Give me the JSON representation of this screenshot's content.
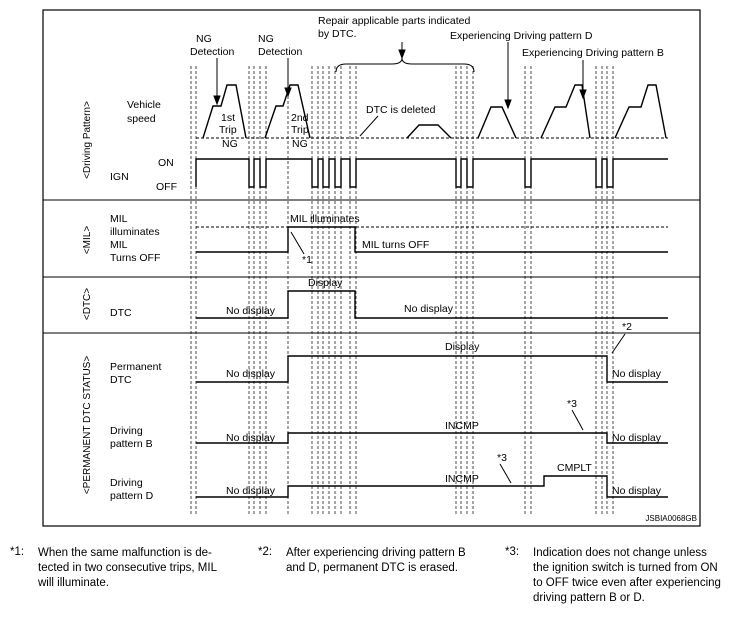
{
  "top_notes": {
    "ng_detection_1": [
      "NG",
      "Detection"
    ],
    "ng_detection_2": [
      "NG",
      "Detection"
    ],
    "repair": [
      "Repair applicable parts indicated",
      "by DTC."
    ],
    "pattern_d": "Experiencing Driving pattern D",
    "pattern_b": "Experiencing Driving pattern B"
  },
  "section_labels": {
    "driving_pattern": "<Driving Pattern>",
    "mil": "<MIL>",
    "dtc": "<DTC>",
    "permanent": "<PERMANENT DTC STATUS>"
  },
  "rows": {
    "vehicle_speed": [
      "Vehicle",
      "speed"
    ],
    "ign": "IGN",
    "ign_on": "ON",
    "ign_off": "OFF",
    "mil_illuminates": [
      "MIL",
      "illuminates"
    ],
    "mil_turns_off": [
      "MIL",
      "Turns OFF"
    ],
    "dtc": "DTC",
    "permanent_dtc": [
      "Permanent",
      "DTC"
    ],
    "pattern_b": [
      "Driving",
      "pattern B"
    ],
    "pattern_d": [
      "Driving",
      "pattern D"
    ]
  },
  "annotations": {
    "trip1": [
      "1st",
      "Trip",
      "NG"
    ],
    "trip2": [
      "2nd",
      "Trip",
      "NG"
    ],
    "dtc_deleted": "DTC is deleted",
    "mil_illuminates": "MIL illuminates",
    "mil_turns_off": "MIL turns OFF",
    "star1": "*1",
    "star2": "*2",
    "star3a": "*3",
    "star3b": "*3",
    "display_dtc": "Display",
    "no_display_dtc1": "No display",
    "no_display_dtc2": "No display",
    "display_perm": "Display",
    "no_display_perm1": "No display",
    "no_display_perm2": "No display",
    "no_display_b1": "No display",
    "incmp_b": "INCMP",
    "no_display_b2": "No display",
    "no_display_d1": "No display",
    "incmp_d": "INCMP",
    "cmplt_d": "CMPLT",
    "no_display_d2": "No display"
  },
  "code": "JSBIA0068GB",
  "footnotes": [
    {
      "mark": "*1:",
      "lines": [
        "When the same malfunction is de-",
        "tected in two consecutive trips, MIL",
        "will illuminate."
      ]
    },
    {
      "mark": "*2:",
      "lines": [
        "After experiencing driving pattern B",
        "and D, permanent DTC is erased."
      ]
    },
    {
      "mark": "*3:",
      "lines": [
        "Indication does not change unless",
        "the ignition switch is turned from ON",
        "to OFF twice even after experiencing",
        "driving pattern B or D."
      ]
    }
  ]
}
